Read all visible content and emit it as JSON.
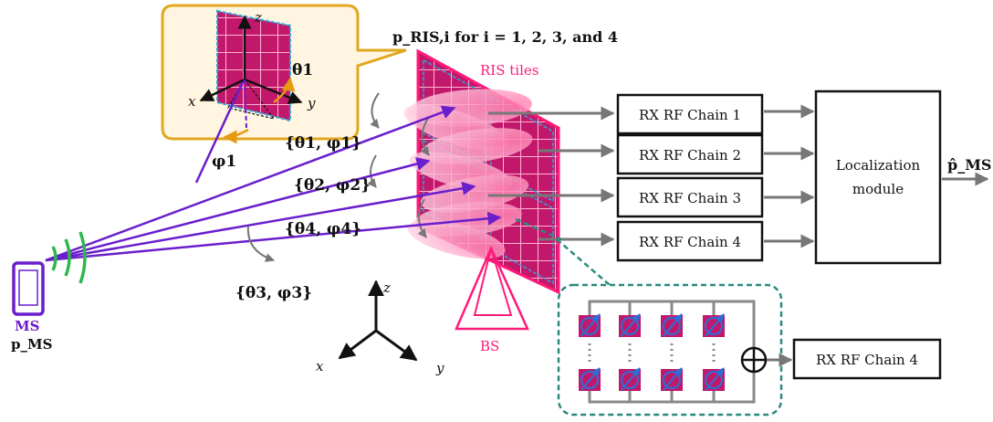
{
  "labels": {
    "ris_position": "p_RIS,i for i = 1, 2, 3, and 4",
    "ris_tiles": "RIS tiles",
    "bs": "BS",
    "ms": "MS",
    "p_ms": "p_MS",
    "p_ms_hat": "p̂_MS",
    "angles": [
      "{θ1, φ1}",
      "{θ2, φ2}",
      "{θ4, φ4}",
      "{θ3, φ3}"
    ],
    "inset_theta": "θ1",
    "inset_phi": "φ1"
  },
  "blocks": {
    "rx_chains": [
      "RX RF Chain 1",
      "RX RF Chain 2",
      "RX RF Chain 3",
      "RX RF Chain 4"
    ],
    "localization": [
      "Localization",
      "module"
    ],
    "rx_detail": "RX RF Chain 4"
  },
  "axes": {
    "main": {
      "z": "z",
      "x": "x",
      "y": "y"
    },
    "inset": {
      "z": "z",
      "x": "x",
      "y": "y"
    }
  },
  "colors": {
    "ray": "#6a1ecc",
    "ris": "#c2186b",
    "ris_border": "#ff1a7a",
    "beam": "#ff9cc4",
    "signal": "#2db84d",
    "detail_border": "#2a8a80",
    "arrow": "#777777",
    "callout": "#e0a820"
  }
}
